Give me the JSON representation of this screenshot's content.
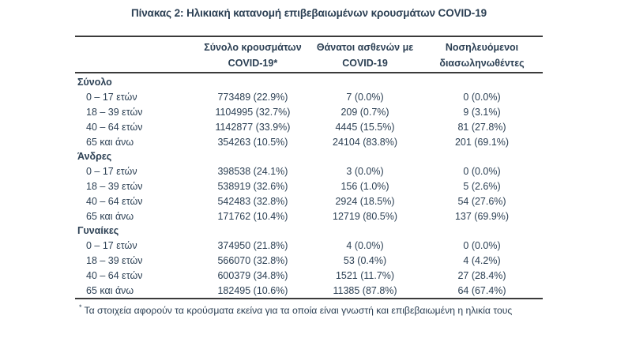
{
  "page": {
    "title": "Πίνακας 2: Ηλικιακή κατανομή επιβεβαιωμένων κρουσμάτων COVID-19"
  },
  "colors": {
    "text": "#2c4054",
    "rule": "#3b3b3b",
    "background": "#ffffff"
  },
  "table": {
    "headers": [
      {
        "line1": "Σύνολο κρουσμάτων",
        "line2": "COVID-19*"
      },
      {
        "line1": "Θάνατοι ασθενών με",
        "line2": "COVID-19"
      },
      {
        "line1": "Νοσηλευόμενοι",
        "line2": "διασωληνωθέντες"
      }
    ],
    "sections": [
      {
        "label": "Σύνολο",
        "rows": [
          {
            "age": "0 – 17 ετών",
            "cases": "773489 (22.9%)",
            "deaths": "7 (0.0%)",
            "intubated": "0 (0.0%)"
          },
          {
            "age": "18 – 39 ετών",
            "cases": "1104995 (32.7%)",
            "deaths": "209 (0.7%)",
            "intubated": "9 (3.1%)"
          },
          {
            "age": "40 – 64 ετών",
            "cases": "1142877 (33.9%)",
            "deaths": "4445 (15.5%)",
            "intubated": "81 (27.8%)"
          },
          {
            "age": "65 και άνω",
            "cases": "354263 (10.5%)",
            "deaths": "24104 (83.8%)",
            "intubated": "201 (69.1%)"
          }
        ]
      },
      {
        "label": "Άνδρες",
        "rows": [
          {
            "age": "0 – 17 ετών",
            "cases": "398538 (24.1%)",
            "deaths": "3 (0.0%)",
            "intubated": "0 (0.0%)"
          },
          {
            "age": "18 – 39 ετών",
            "cases": "538919 (32.6%)",
            "deaths": "156 (1.0%)",
            "intubated": "5 (2.6%)"
          },
          {
            "age": "40 – 64 ετών",
            "cases": "542483 (32.8%)",
            "deaths": "2924 (18.5%)",
            "intubated": "54 (27.6%)"
          },
          {
            "age": "65 και άνω",
            "cases": "171762 (10.4%)",
            "deaths": "12719 (80.5%)",
            "intubated": "137 (69.9%)"
          }
        ]
      },
      {
        "label": "Γυναίκες",
        "rows": [
          {
            "age": "0 – 17 ετών",
            "cases": "374950 (21.8%)",
            "deaths": "4 (0.0%)",
            "intubated": "0 (0.0%)"
          },
          {
            "age": "18 – 39 ετών",
            "cases": "566070 (32.8%)",
            "deaths": "53 (0.4%)",
            "intubated": "4 (4.2%)"
          },
          {
            "age": "40 – 64 ετών",
            "cases": "600379 (34.8%)",
            "deaths": "1521 (11.7%)",
            "intubated": "27 (28.4%)"
          },
          {
            "age": "65 και άνω",
            "cases": "182495 (10.6%)",
            "deaths": "11385 (87.8%)",
            "intubated": "64 (67.4%)"
          }
        ]
      }
    ],
    "footnote": {
      "marker": "*",
      "text": "Τα στοιχεία αφορούν τα κρούσματα εκείνα για τα οποία είναι γνωστή και επιβεβαιωμένη η ηλικία τους"
    }
  }
}
